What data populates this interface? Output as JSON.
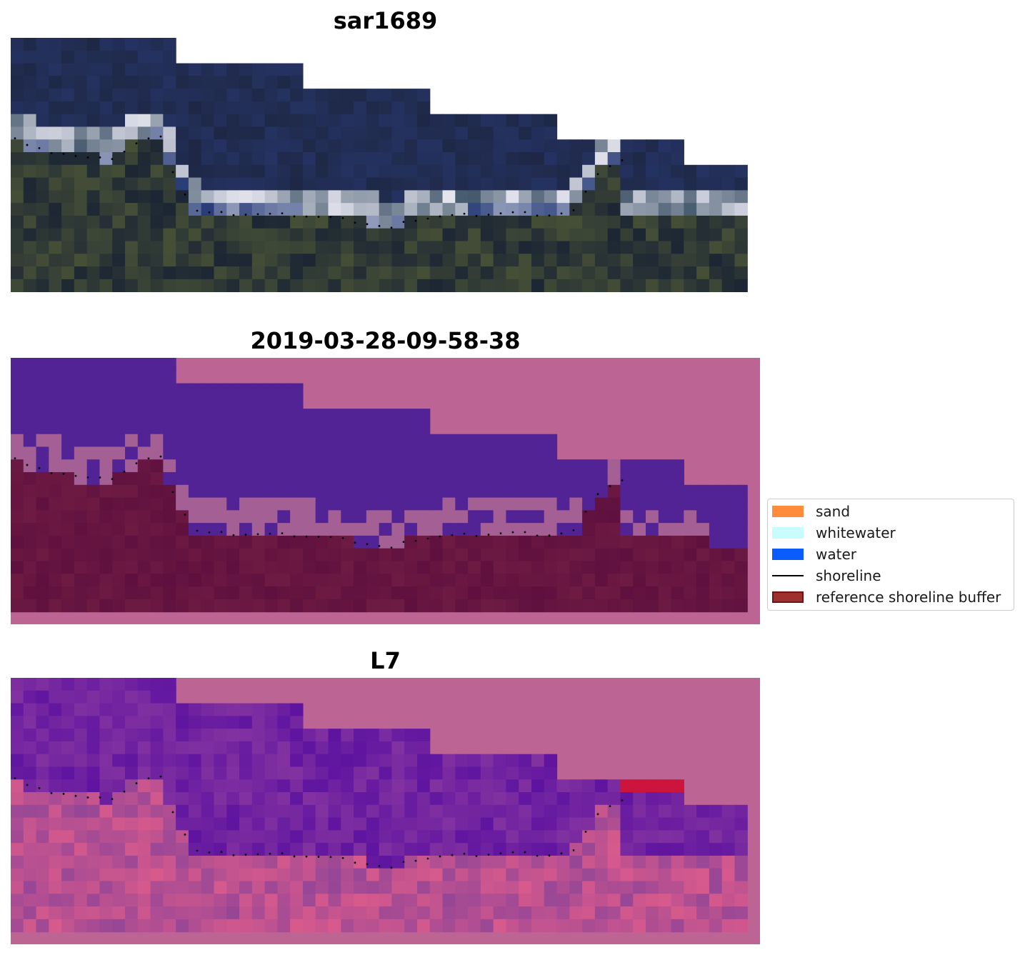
{
  "panels": [
    {
      "title": "sar1689",
      "kind": "rgb"
    },
    {
      "title": "2019-03-28-09-58-38",
      "kind": "classification"
    },
    {
      "title": "L7",
      "kind": "index"
    }
  ],
  "legend": {
    "items": [
      {
        "label": "sand",
        "color": "#ff8c3a",
        "type": "patch"
      },
      {
        "label": "whitewater",
        "color": "#c8fcff",
        "type": "patch"
      },
      {
        "label": "water",
        "color": "#0a5cff",
        "type": "patch"
      },
      {
        "label": "shoreline",
        "color": "#000000",
        "type": "line"
      },
      {
        "label": "reference shoreline buffer",
        "color": "#9e3030",
        "type": "patch"
      }
    ]
  },
  "colors": {
    "background_pink": "#bc6595",
    "water_purple": "#522394",
    "buffer_dark": "#621040",
    "rgb_dark": "#1e2838",
    "shoreline_dots": "#000000"
  }
}
